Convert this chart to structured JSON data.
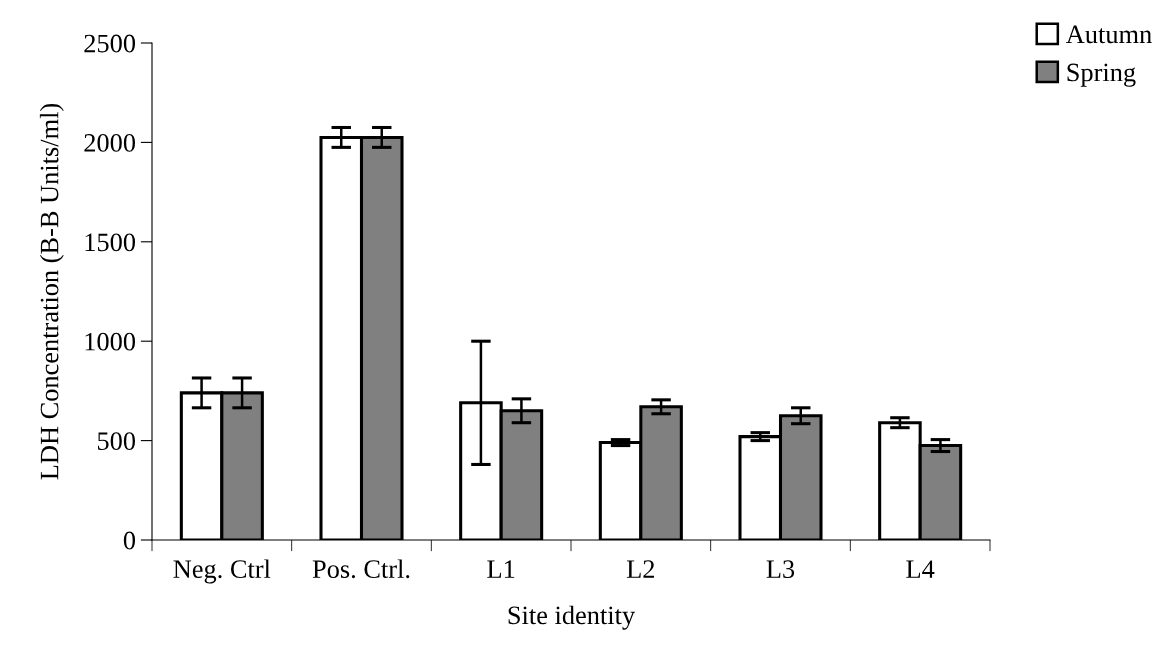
{
  "chart_data": {
    "type": "bar",
    "xlabel": "Site identity",
    "ylabel": "LDH Concentration (B-B Units/ml)",
    "categories": [
      "Neg. Ctrl",
      "Pos. Ctrl.",
      "L1",
      "L2",
      "L3",
      "L4"
    ],
    "series": [
      {
        "name": "Autumn",
        "color": "#ffffff",
        "values": [
          740,
          2025,
          690,
          490,
          520,
          590
        ],
        "errors": [
          75,
          50,
          310,
          15,
          20,
          25
        ]
      },
      {
        "name": "Spring",
        "color": "#808080",
        "values": [
          740,
          2025,
          650,
          670,
          625,
          475
        ],
        "errors": [
          75,
          50,
          60,
          35,
          40,
          30
        ]
      }
    ],
    "ylim": [
      0,
      2500
    ],
    "yticks": [
      0,
      500,
      1000,
      1500,
      2000,
      2500
    ],
    "grid": false,
    "legend": "top right"
  }
}
